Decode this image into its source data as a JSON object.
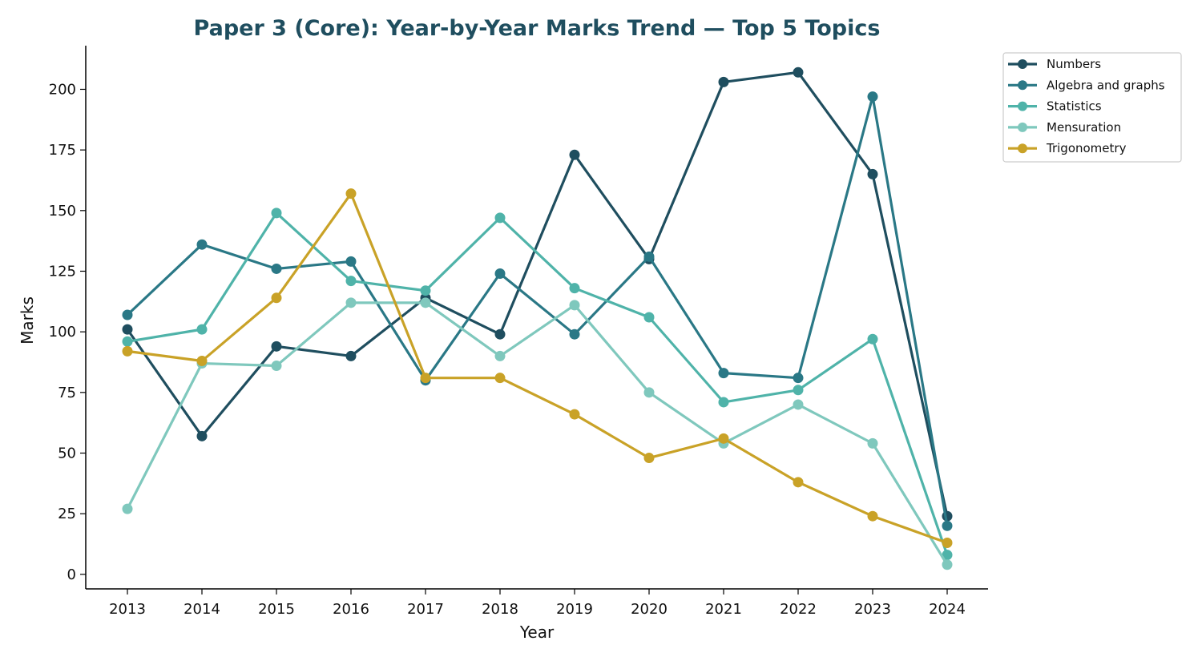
{
  "chart_data": {
    "type": "line",
    "title": "Paper 3 (Core): Year-by-Year Marks Trend — Top 5 Topics",
    "xlabel": "Year",
    "ylabel": "Marks",
    "x": [
      2013,
      2014,
      2015,
      2016,
      2017,
      2018,
      2019,
      2020,
      2021,
      2022,
      2023,
      2024
    ],
    "x_tick_labels": [
      "2013",
      "2014",
      "2015",
      "2016",
      "2017",
      "2018",
      "2019",
      "2020",
      "2021",
      "2022",
      "2023",
      "2024"
    ],
    "y_ticks": [
      0,
      25,
      50,
      75,
      100,
      125,
      150,
      175,
      200
    ],
    "y_tick_labels": [
      "0",
      "25",
      "50",
      "75",
      "100",
      "125",
      "150",
      "175",
      "200"
    ],
    "ylim": [
      -6,
      218
    ],
    "grid": false,
    "legend_position": "outside-top-right",
    "series": [
      {
        "name": "Numbers",
        "color": "#1f4e5f",
        "values": [
          101,
          57,
          94,
          90,
          114,
          99,
          173,
          130,
          203,
          207,
          165,
          24
        ]
      },
      {
        "name": "Algebra and graphs",
        "color": "#2a7886",
        "values": [
          107,
          136,
          126,
          129,
          80,
          124,
          99,
          131,
          83,
          81,
          197,
          20
        ]
      },
      {
        "name": "Statistics",
        "color": "#4fb3a9",
        "values": [
          96,
          101,
          149,
          121,
          117,
          147,
          118,
          106,
          71,
          76,
          97,
          8
        ]
      },
      {
        "name": "Mensuration",
        "color": "#7fc8bd",
        "values": [
          27,
          87,
          86,
          112,
          112,
          90,
          111,
          75,
          54,
          70,
          54,
          4
        ]
      },
      {
        "name": "Trigonometry",
        "color": "#c9a227",
        "values": [
          92,
          88,
          114,
          157,
          81,
          81,
          66,
          48,
          56,
          38,
          24,
          13
        ]
      }
    ]
  }
}
